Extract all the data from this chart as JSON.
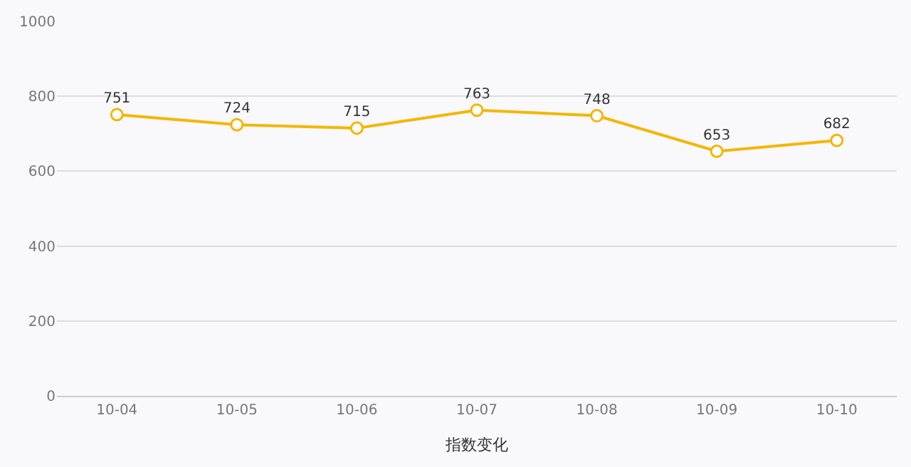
{
  "chart_data": {
    "type": "line",
    "xlabel": "指数变化",
    "categories": [
      "10-04",
      "10-05",
      "10-06",
      "10-07",
      "10-08",
      "10-09",
      "10-10"
    ],
    "series": [
      {
        "color": "#f2b705",
        "values": [
          751,
          724,
          715,
          763,
          748,
          653,
          682
        ]
      }
    ],
    "ylim": [
      0,
      1000
    ],
    "yticks": [
      0,
      200,
      400,
      600,
      800,
      1000
    ],
    "grid": "y",
    "marker": "circle",
    "line_style": "solid",
    "data_labels": true,
    "legend": false
  }
}
